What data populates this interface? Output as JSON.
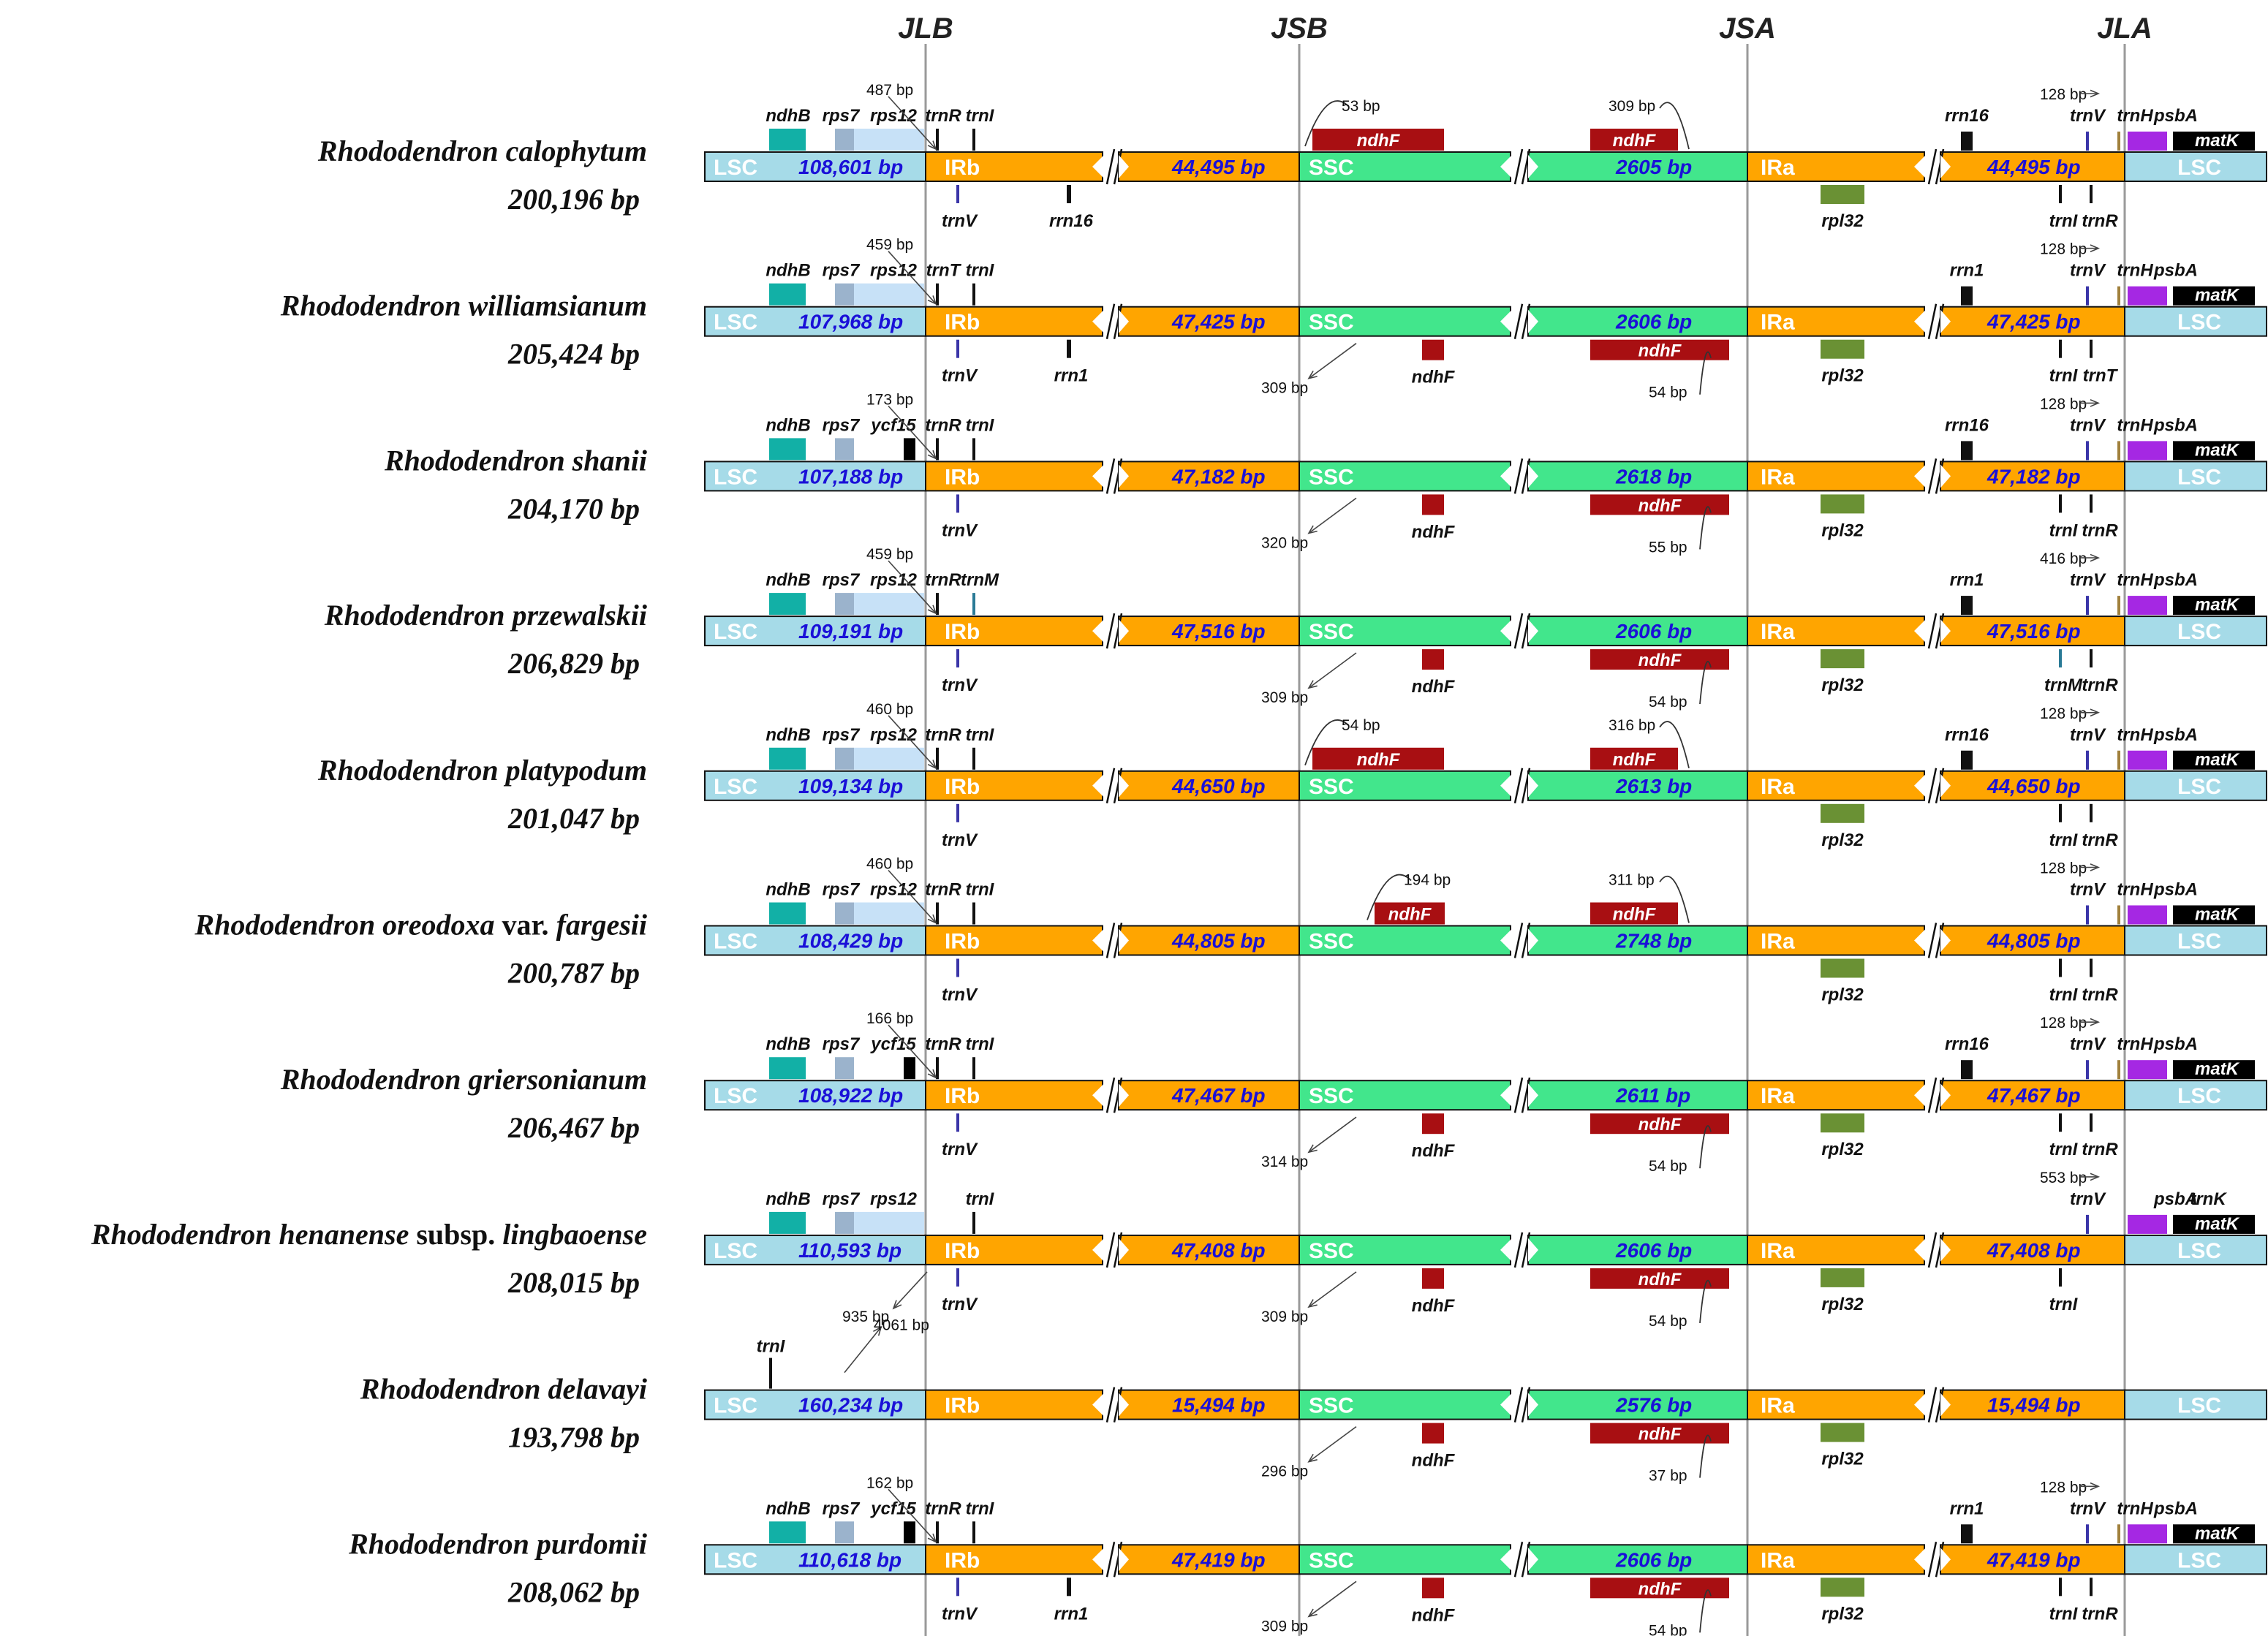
{
  "figure": {
    "junctions": [
      "JLB",
      "JSB",
      "JSA",
      "JLA"
    ],
    "colors": {
      "lsc": "#a6dbe8",
      "ir": "#ffa500",
      "ssc": "#42e68c",
      "ndhB": "#12b0a6",
      "rps7": "#9bb3cc",
      "rps12": "#c7e1f7",
      "ndhF": "#a80f12",
      "rpl32": "#6a9134",
      "psbA": "#a528e3",
      "matK": "#000000",
      "trnV": "#3a35a8",
      "trnM": "#2a7a96",
      "trnH": "#a0803c",
      "ycf15": "#000000"
    },
    "rows": [
      {
        "species_italic": "Rhododendron calophytum",
        "species_plain": "",
        "species_italic2": "",
        "size": "200,196 bp",
        "lsc_len": "108,601 bp",
        "ir_len": "44,495 bp",
        "ssc_len": "2605 bp",
        "top_left_genes": [
          "ndhB",
          "rps7",
          "rps12",
          "trnR",
          "trnI"
        ],
        "top_left_bp": "487 bp",
        "bottom_left": [
          "trnV",
          "rrn16"
        ],
        "ndhF_top_left": "ndhF",
        "jsb_bp": "53 bp",
        "ndhF_top_right": "ndhF",
        "jsa_bp": "309 bp",
        "ndhF_bottom_left": "",
        "jsb_bottom_bp": "",
        "ndhF_bottom_right": "",
        "jsa_bottom_bp": "",
        "rpl32": "rpl32",
        "right_top_label": "rrn16",
        "right_bp": "128 bp",
        "right_top_genes": [
          "trnV",
          "trnH",
          "psbA"
        ],
        "matK": "matK",
        "right_bottom": [
          "trnI",
          "trnR"
        ]
      },
      {
        "species_italic": "Rhododendron williamsianum",
        "species_plain": "",
        "species_italic2": "",
        "size": "205,424 bp",
        "lsc_len": "107,968 bp",
        "ir_len": "47,425 bp",
        "ssc_len": "2606 bp",
        "top_left_genes": [
          "ndhB",
          "rps7",
          "rps12",
          "trnT",
          "trnI"
        ],
        "top_left_bp": "459 bp",
        "bottom_left": [
          "trnV",
          "rrn1"
        ],
        "ndhF_top_left": "",
        "jsb_bp": "",
        "ndhF_top_right": "",
        "jsa_bp": "",
        "ndhF_bottom_left": "ndhF",
        "jsb_bottom_bp": "309 bp",
        "ndhF_bottom_right": "ndhF",
        "jsa_bottom_bp": "54 bp",
        "rpl32": "rpl32",
        "right_top_label": "rrn1",
        "right_bp": "128 bp",
        "right_top_genes": [
          "trnV",
          "trnH",
          "psbA"
        ],
        "matK": "matK",
        "right_bottom": [
          "trnI",
          "trnT"
        ]
      },
      {
        "species_italic": "Rhododendron shanii",
        "species_plain": "",
        "species_italic2": "",
        "size": "204,170 bp",
        "lsc_len": "107,188 bp",
        "ir_len": "47,182 bp",
        "ssc_len": "2618 bp",
        "top_left_genes": [
          "ndhB",
          "rps7",
          "ycf15",
          "trnR",
          "trnI"
        ],
        "top_left_bp": "173 bp",
        "bottom_left": [
          "trnV",
          ""
        ],
        "ndhF_top_left": "",
        "jsb_bp": "",
        "ndhF_top_right": "",
        "jsa_bp": "",
        "ndhF_bottom_left": "ndhF",
        "jsb_bottom_bp": "320 bp",
        "ndhF_bottom_right": "ndhF",
        "jsa_bottom_bp": "55 bp",
        "rpl32": "rpl32",
        "right_top_label": "rrn16",
        "right_bp": "128 bp",
        "right_top_genes": [
          "trnV",
          "trnH",
          "psbA"
        ],
        "matK": "matK",
        "right_bottom": [
          "trnI",
          "trnR"
        ]
      },
      {
        "species_italic": "Rhododendron przewalskii",
        "species_plain": "",
        "species_italic2": "",
        "size": "206,829 bp",
        "lsc_len": "109,191 bp",
        "ir_len": "47,516 bp",
        "ssc_len": "2606 bp",
        "top_left_genes": [
          "ndhB",
          "rps7",
          "rps12",
          "trnR",
          "trnM"
        ],
        "top_left_bp": "459 bp",
        "bottom_left": [
          "trnV",
          ""
        ],
        "ndhF_top_left": "",
        "jsb_bp": "",
        "ndhF_top_right": "",
        "jsa_bp": "",
        "ndhF_bottom_left": "ndhF",
        "jsb_bottom_bp": "309 bp",
        "ndhF_bottom_right": "ndhF",
        "jsa_bottom_bp": "54 bp",
        "rpl32": "rpl32",
        "right_top_label": "rrn1",
        "right_bp": "416 bp",
        "right_top_genes": [
          "trnV",
          "trnH",
          "psbA"
        ],
        "matK": "matK",
        "right_bottom": [
          "trnM",
          "trnR"
        ]
      },
      {
        "species_italic": "Rhododendron platypodum",
        "species_plain": "",
        "species_italic2": "",
        "size": "201,047 bp",
        "lsc_len": "109,134 bp",
        "ir_len": "44,650 bp",
        "ssc_len": "2613 bp",
        "top_left_genes": [
          "ndhB",
          "rps7",
          "rps12",
          "trnR",
          "trnI"
        ],
        "top_left_bp": "460 bp",
        "bottom_left": [
          "trnV",
          ""
        ],
        "ndhF_top_left": "ndhF",
        "jsb_bp": "54 bp",
        "ndhF_top_right": "ndhF",
        "jsa_bp": "316 bp",
        "ndhF_bottom_left": "",
        "jsb_bottom_bp": "",
        "ndhF_bottom_right": "",
        "jsa_bottom_bp": "",
        "rpl32": "rpl32",
        "right_top_label": "rrn16",
        "right_bp": "128 bp",
        "right_top_genes": [
          "trnV",
          "trnH",
          "psbA"
        ],
        "matK": "matK",
        "right_bottom": [
          "trnI",
          "trnR"
        ]
      },
      {
        "species_italic": "Rhododendron oreodoxa",
        "species_plain": " var. ",
        "species_italic2": "fargesii",
        "size": "200,787 bp",
        "lsc_len": "108,429 bp",
        "ir_len": "44,805 bp",
        "ssc_len": "2748 bp",
        "top_left_genes": [
          "ndhB",
          "rps7",
          "rps12",
          "trnR",
          "trnI"
        ],
        "top_left_bp": "460 bp",
        "bottom_left": [
          "trnV",
          ""
        ],
        "ndhF_top_left": "ndhF",
        "jsb_bp": "194 bp",
        "ndhF_top_right": "ndhF",
        "jsa_bp": "311 bp",
        "ndhF_bottom_left": "",
        "jsb_bottom_bp": "",
        "ndhF_bottom_right": "",
        "jsa_bottom_bp": "",
        "rpl32": "rpl32",
        "right_top_label": "",
        "right_bp": "128 bp",
        "right_top_genes": [
          "trnV",
          "trnH",
          "psbA"
        ],
        "matK": "matK",
        "right_bottom": [
          "trnI",
          "trnR"
        ]
      },
      {
        "species_italic": "Rhododendron griersonianum",
        "species_plain": "",
        "species_italic2": "",
        "size": "206,467 bp",
        "lsc_len": "108,922 bp",
        "ir_len": "47,467 bp",
        "ssc_len": "2611 bp",
        "top_left_genes": [
          "ndhB",
          "rps7",
          "ycf15",
          "trnR",
          "trnI"
        ],
        "top_left_bp": "166 bp",
        "bottom_left": [
          "trnV",
          ""
        ],
        "ndhF_top_left": "",
        "jsb_bp": "",
        "ndhF_top_right": "",
        "jsa_bp": "",
        "ndhF_bottom_left": "ndhF",
        "jsb_bottom_bp": "314 bp",
        "ndhF_bottom_right": "ndhF",
        "jsa_bottom_bp": "54 bp",
        "rpl32": "rpl32",
        "right_top_label": "rrn16",
        "right_bp": "128 bp",
        "right_top_genes": [
          "trnV",
          "trnH",
          "psbA"
        ],
        "matK": "matK",
        "right_bottom": [
          "trnI",
          "trnR"
        ]
      },
      {
        "species_italic": "Rhododendron henanense",
        "species_plain": " subsp. ",
        "species_italic2": "lingbaoense",
        "size": "208,015 bp",
        "lsc_len": "110,593 bp",
        "ir_len": "47,408 bp",
        "ssc_len": "2606 bp",
        "top_left_genes": [
          "ndhB",
          "rps7",
          "rps12",
          "",
          "trnI"
        ],
        "top_left_bp": "",
        "bottom_left": [
          "trnV",
          ""
        ],
        "bottom_left_bp": "935 bp",
        "ndhF_top_left": "",
        "jsb_bp": "",
        "ndhF_top_right": "",
        "jsa_bp": "",
        "ndhF_bottom_left": "ndhF",
        "jsb_bottom_bp": "309 bp",
        "ndhF_bottom_right": "ndhF",
        "jsa_bottom_bp": "54 bp",
        "rpl32": "rpl32",
        "right_top_label": "",
        "right_bp": "553 bp",
        "right_top_genes": [
          "trnV",
          "",
          "psbA"
        ],
        "matK": "matK",
        "trnK": "trnK",
        "right_bottom": [
          "trnI",
          ""
        ]
      },
      {
        "species_italic": "Rhododendron delavayi",
        "species_plain": "",
        "species_italic2": "",
        "size": "193,798 bp",
        "lsc_len": "160,234 bp",
        "ir_len": "15,494 bp",
        "ssc_len": "2576 bp",
        "delavayi_trnI": "trnI",
        "delavayi_bp": "4061 bp",
        "ndhF_top_left": "",
        "jsb_bp": "",
        "ndhF_top_right": "",
        "jsa_bp": "",
        "ndhF_bottom_left": "ndhF",
        "jsb_bottom_bp": "296 bp",
        "ndhF_bottom_right": "ndhF",
        "jsa_bottom_bp": "37 bp",
        "rpl32": "rpl32"
      },
      {
        "species_italic": "Rhododendron purdomii",
        "species_plain": "",
        "species_italic2": "",
        "size": "208,062 bp",
        "lsc_len": "110,618 bp",
        "ir_len": "47,419 bp",
        "ssc_len": "2606 bp",
        "top_left_genes": [
          "ndhB",
          "rps7",
          "ycf15",
          "trnR",
          "trnI"
        ],
        "top_left_bp": "162 bp",
        "bottom_left": [
          "trnV",
          "rrn1"
        ],
        "ndhF_top_left": "",
        "jsb_bp": "",
        "ndhF_top_right": "",
        "jsa_bp": "",
        "ndhF_bottom_left": "ndhF",
        "jsb_bottom_bp": "309 bp",
        "ndhF_bottom_right": "ndhF",
        "jsa_bottom_bp": "54 bp",
        "rpl32": "rpl32",
        "right_top_label": "rrn1",
        "right_bp": "128 bp",
        "right_top_genes": [
          "trnV",
          "trnH",
          "psbA"
        ],
        "matK": "matK",
        "right_bottom": [
          "trnI",
          "trnR"
        ]
      }
    ],
    "region_labels": {
      "lsc": "LSC",
      "irb": "IRb",
      "ssc": "SSC",
      "ira": "IRa"
    }
  }
}
